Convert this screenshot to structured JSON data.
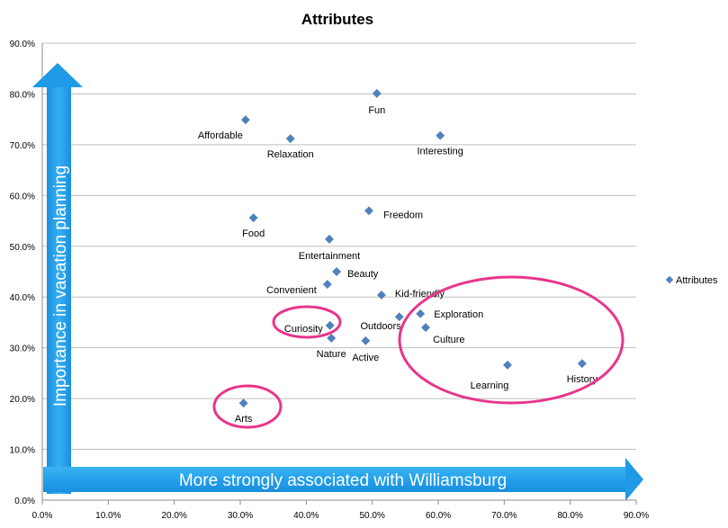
{
  "chart_data": {
    "type": "scatter",
    "title": "Attributes",
    "xlabel": "More strongly associated with Williamsburg",
    "ylabel": "Importance in vacation planning",
    "xlim": [
      0,
      90
    ],
    "ylim": [
      0,
      90
    ],
    "x_ticks": [
      "0.0%",
      "10.0%",
      "20.0%",
      "30.0%",
      "40.0%",
      "50.0%",
      "60.0%",
      "70.0%",
      "80.0%",
      "90.0%"
    ],
    "y_ticks": [
      "0.0%",
      "10.0%",
      "20.0%",
      "30.0%",
      "40.0%",
      "50.0%",
      "60.0%",
      "70.0%",
      "80.0%",
      "90.0%"
    ],
    "grid": "horizontal",
    "legend": {
      "position": "right",
      "entries": [
        "Attributes"
      ]
    },
    "series": [
      {
        "name": "Attributes",
        "color": "#4f81bd",
        "points": [
          {
            "label": "Fun",
            "x": 50.7,
            "y": 80.1
          },
          {
            "label": "Affordable",
            "x": 30.8,
            "y": 74.9
          },
          {
            "label": "Relaxation",
            "x": 37.6,
            "y": 71.2
          },
          {
            "label": "Interesting",
            "x": 60.3,
            "y": 71.8
          },
          {
            "label": "Food",
            "x": 32.0,
            "y": 55.6
          },
          {
            "label": "Freedom",
            "x": 49.5,
            "y": 57.0
          },
          {
            "label": "Entertainment",
            "x": 43.5,
            "y": 51.4
          },
          {
            "label": "Beauty",
            "x": 44.6,
            "y": 45.0
          },
          {
            "label": "Convenient",
            "x": 43.2,
            "y": 42.5
          },
          {
            "label": "Kid-friendly",
            "x": 51.4,
            "y": 40.4
          },
          {
            "label": "Exploration",
            "x": 57.3,
            "y": 36.7
          },
          {
            "label": "Outdoors",
            "x": 54.1,
            "y": 36.1
          },
          {
            "label": "Culture",
            "x": 58.1,
            "y": 34.0
          },
          {
            "label": "Curiosity",
            "x": 43.6,
            "y": 34.4
          },
          {
            "label": "Nature",
            "x": 43.8,
            "y": 31.9
          },
          {
            "label": "Active",
            "x": 49.0,
            "y": 31.4
          },
          {
            "label": "Learning",
            "x": 70.5,
            "y": 26.6
          },
          {
            "label": "History",
            "x": 81.8,
            "y": 26.9
          },
          {
            "label": "Arts",
            "x": 30.5,
            "y": 19.1
          }
        ]
      }
    ],
    "annotations": {
      "highlight_color": "#e8358c",
      "circled": [
        "Curiosity",
        "Arts",
        "Exploration, Outdoors, Culture, Learning, History"
      ]
    }
  }
}
